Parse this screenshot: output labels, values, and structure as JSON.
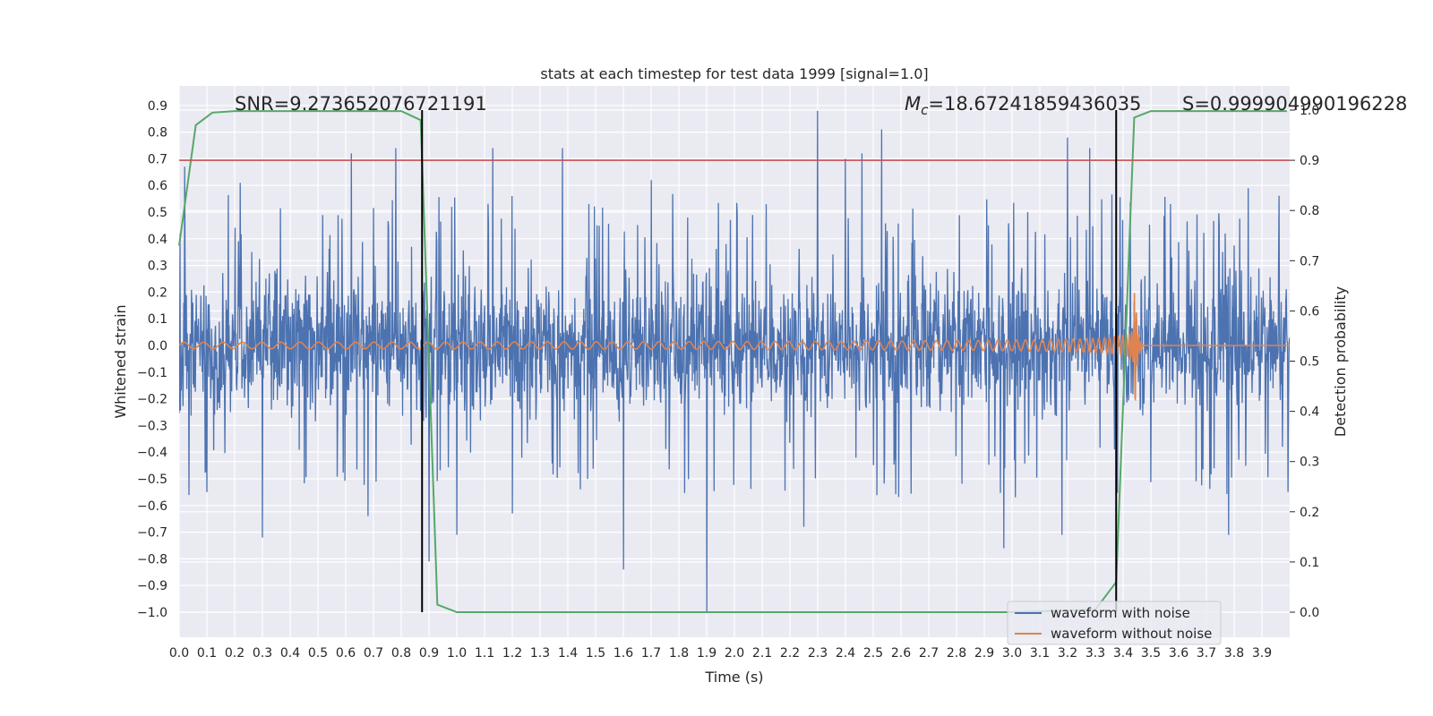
{
  "chart_data": {
    "type": "line",
    "title": "stats at each timestep for test data 1999 [signal=1.0]",
    "xlabel": "Time (s)",
    "ylabel": "Whitened strain",
    "y2label": "Detection probability",
    "xlim": [
      0.0,
      4.0
    ],
    "ylim": [
      -1.09,
      0.97
    ],
    "y2lim": [
      -0.05,
      1.05
    ],
    "grid": true,
    "legend_position": "lower-right",
    "x_ticks": [
      "0.0",
      "0.1",
      "0.2",
      "0.3",
      "0.4",
      "0.5",
      "0.6",
      "0.7",
      "0.8",
      "0.9",
      "1.0",
      "1.1",
      "1.2",
      "1.3",
      "1.4",
      "1.5",
      "1.6",
      "1.7",
      "1.8",
      "1.9",
      "2.0",
      "2.1",
      "2.2",
      "2.3",
      "2.4",
      "2.5",
      "2.6",
      "2.7",
      "2.8",
      "2.9",
      "3.0",
      "3.1",
      "3.2",
      "3.3",
      "3.4",
      "3.5",
      "3.6",
      "3.7",
      "3.8",
      "3.9"
    ],
    "y_ticks": [
      "0.9",
      "0.8",
      "0.7",
      "0.6",
      "0.5",
      "0.4",
      "0.3",
      "0.2",
      "0.1",
      "0.0",
      "−0.1",
      "−0.2",
      "−0.3",
      "−0.4",
      "−0.5",
      "−0.6",
      "−0.7",
      "−0.8",
      "−0.9",
      "−1.0"
    ],
    "y2_ticks": [
      "1.0",
      "0.9",
      "0.8",
      "0.7",
      "0.6",
      "0.5",
      "0.4",
      "0.3",
      "0.2",
      "0.1",
      "0.0"
    ],
    "annotations": {
      "snr": "SNR=9.273652076721191",
      "mc": "=18.67241859436035",
      "mc_symbol": "M",
      "mc_subscript": "c",
      "s": "S=0.999904990196228"
    },
    "threshold_y2": 0.9,
    "event_markers_x": [
      0.875,
      3.375
    ],
    "series": [
      {
        "name": "waveform with noise",
        "color": "#4c72b0",
        "axis": "left",
        "envelope": {
          "typical_max": 0.3,
          "typical_min": -0.25,
          "peaks": [
            {
              "x": 0.02,
              "y": 0.67
            },
            {
              "x": 0.22,
              "y": 0.61
            },
            {
              "x": 0.62,
              "y": 0.72
            },
            {
              "x": 0.66,
              "y": 0.71
            },
            {
              "x": 0.71,
              "y": 0.74
            },
            {
              "x": 0.78,
              "y": 0.74
            },
            {
              "x": 1.13,
              "y": 0.74
            },
            {
              "x": 1.05,
              "y": 0.62
            },
            {
              "x": 1.38,
              "y": 0.74
            },
            {
              "x": 1.7,
              "y": 0.62
            },
            {
              "x": 2.3,
              "y": 0.88
            },
            {
              "x": 2.4,
              "y": 0.7
            },
            {
              "x": 2.46,
              "y": 0.72
            },
            {
              "x": 2.53,
              "y": 0.81
            },
            {
              "x": 2.81,
              "y": 0.79
            },
            {
              "x": 3.06,
              "y": 0.66
            },
            {
              "x": 3.2,
              "y": 0.78
            },
            {
              "x": 3.28,
              "y": 0.74
            },
            {
              "x": 3.69,
              "y": 0.62
            },
            {
              "x": 3.85,
              "y": 0.59
            }
          ],
          "troughs": [
            {
              "x": 0.1,
              "y": -0.55
            },
            {
              "x": 0.3,
              "y": -0.72
            },
            {
              "x": 0.68,
              "y": -0.64
            },
            {
              "x": 0.9,
              "y": -0.81
            },
            {
              "x": 1.0,
              "y": -0.71
            },
            {
              "x": 1.2,
              "y": -0.63
            },
            {
              "x": 1.6,
              "y": -0.84
            },
            {
              "x": 1.72,
              "y": -0.72
            },
            {
              "x": 1.9,
              "y": -1.0
            },
            {
              "x": 2.25,
              "y": -0.68
            },
            {
              "x": 2.97,
              "y": -0.76
            },
            {
              "x": 3.18,
              "y": -0.71
            },
            {
              "x": 3.78,
              "y": -0.71
            }
          ]
        }
      },
      {
        "name": "waveform without noise",
        "color": "#dd8452",
        "axis": "left",
        "chirp": {
          "t_start": 0.0,
          "t_merger": 3.44,
          "f_start": 14,
          "f_merger": 120,
          "amp_start": 0.012,
          "amp_merger": 0.33,
          "after_merger_value": 0.0
        }
      },
      {
        "name": "",
        "color": "#55a868",
        "axis": "right",
        "x": [
          0.0,
          0.06,
          0.12,
          0.2,
          0.35,
          0.5,
          0.65,
          0.8,
          0.87,
          0.93,
          1.0,
          1.5,
          2.0,
          2.5,
          3.0,
          3.3,
          3.375,
          3.44,
          3.5,
          3.6,
          3.7,
          3.8,
          3.99
        ],
        "values": [
          0.73,
          0.97,
          0.995,
          0.998,
          0.998,
          0.998,
          0.998,
          0.998,
          0.98,
          0.015,
          0.0,
          0.0,
          0.0,
          0.0,
          0.0,
          0.005,
          0.06,
          0.985,
          0.998,
          0.998,
          0.998,
          0.998,
          0.998
        ]
      }
    ]
  },
  "colors": {
    "background": "#ffffff",
    "plot_area": "#eaeaf2",
    "grid": "#ffffff",
    "text": "#262626",
    "threshold": "#c44e52",
    "marker": "#000000"
  }
}
